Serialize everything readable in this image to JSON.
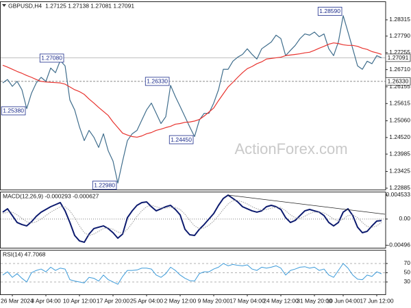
{
  "chart_data": [
    {
      "type": "line",
      "title": "GBPUSD,H4",
      "subtitle": "1.27125 1.27138 1.27081 1.27091",
      "watermark": "ActionForex.com",
      "categories": [
        null,
        null,
        "26 Mar 2024",
        null,
        null,
        null,
        null,
        null,
        null,
        "3 Apr 04:00",
        null,
        null,
        null,
        null,
        null,
        null,
        "10 Apr 12:00",
        null,
        null,
        null,
        null,
        null,
        null,
        "17 Apr 20:00",
        null,
        null,
        null,
        null,
        null,
        null,
        "25 Apr 04:00",
        null,
        null,
        null,
        null,
        null,
        null,
        "2 May 12:00",
        null,
        null,
        null,
        null,
        null,
        null,
        "9 May 20:00",
        null,
        null,
        null,
        null,
        null,
        null,
        "17 May 04:00",
        null,
        null,
        null,
        null,
        null,
        null,
        "24 May 12:00",
        null,
        null,
        null,
        null,
        null,
        null,
        "31 May 20:00",
        null,
        null,
        null,
        null,
        null,
        "10 Jun 04:00",
        null,
        null,
        null,
        null,
        null,
        null,
        "17 Jun 12:00",
        null
      ],
      "series": [
        {
          "color": "#3f6d8c",
          "width": 1.2,
          "values": [
            1.2628,
            1.2639,
            1.2617,
            1.2633,
            1.2606,
            1.2545,
            1.2595,
            1.2628,
            1.2646,
            1.2633,
            1.2676,
            1.2661,
            1.27,
            1.2683,
            1.2573,
            1.2541,
            1.2486,
            1.2442,
            1.2475,
            1.2453,
            1.242,
            1.2464,
            1.2409,
            1.2376,
            1.2305,
            1.2376,
            1.2442,
            1.2464,
            1.2475,
            1.2508,
            1.2541,
            1.2563,
            1.253,
            1.2497,
            1.2519,
            1.262,
            1.2584,
            1.2552,
            1.2519,
            1.2486,
            1.2455,
            1.2508,
            1.253,
            1.253,
            1.2563,
            1.2606,
            1.2672,
            1.2672,
            1.2698,
            1.2711,
            1.272,
            1.2738,
            1.272,
            1.2705,
            1.2738,
            1.2749,
            1.276,
            1.2782,
            1.2771,
            1.2716,
            1.2733,
            1.2749,
            1.2771,
            1.2786,
            1.2782,
            1.2792,
            1.2777,
            1.2786,
            1.2738,
            1.2716,
            1.276,
            1.2845,
            1.2792,
            1.2738,
            1.2683,
            1.2672,
            1.2698,
            1.269,
            1.2716,
            1.2709
          ]
        },
        {
          "color": "#e8322d",
          "width": 1.2,
          "values": [
            1.2685,
            1.2679,
            1.2672,
            1.2665,
            1.2659,
            1.2652,
            1.2646,
            1.2639,
            1.2633,
            1.2631,
            1.263,
            1.2629,
            1.2628,
            1.2624,
            1.2615,
            1.2606,
            1.26,
            1.2591,
            1.2576,
            1.2563,
            1.2549,
            1.2536,
            1.2523,
            1.2502,
            1.2484,
            1.2466,
            1.246,
            1.2455,
            1.2453,
            1.2457,
            1.2464,
            1.2468,
            1.2475,
            1.2479,
            1.2484,
            1.2488,
            1.2495,
            1.2497,
            1.2501,
            1.2502,
            1.2505,
            1.251,
            1.2521,
            1.2534,
            1.2547,
            1.2571,
            1.2593,
            1.2615,
            1.263,
            1.2646,
            1.2661,
            1.2674,
            1.2681,
            1.269,
            1.2696,
            1.2705,
            1.2707,
            1.2709,
            1.2711,
            1.2716,
            1.2718,
            1.272,
            1.2722,
            1.2725,
            1.2727,
            1.2733,
            1.274,
            1.2746,
            1.2753,
            1.2757,
            1.2755,
            1.2751,
            1.2749,
            1.2749,
            1.2746,
            1.274,
            1.2736,
            1.2729,
            1.2725,
            1.272
          ]
        }
      ],
      "ylim": [
        1.2284,
        1.2891
      ],
      "yticks": [
        1.28315,
        {
          "value": 1.2779,
          "label": "1.27790"
        },
        1.27255,
        {
          "value": 1.2671,
          "label": "1.26710"
        },
        1.26155,
        1.25615,
        {
          "value": 1.2506,
          "label": "1.25060"
        },
        {
          "value": 1.2452,
          "label": "1.24520"
        },
        1.23985,
        1.23425,
        1.22885
      ],
      "levels": [
        {
          "value": 1.2633,
          "label": "1.26330",
          "style": "dashed"
        },
        {
          "value": 1.27091,
          "label": "1.27091",
          "style": "solid"
        }
      ],
      "annotations": [
        {
          "index": 5,
          "value": 1.2538,
          "label": "1.25380"
        },
        {
          "index": 13,
          "value": 1.2708,
          "label": "1.27080"
        },
        {
          "index": 35,
          "value": 1.2633,
          "label": "1.26330"
        },
        {
          "index": 24,
          "value": 1.2298,
          "label": "1.22980"
        },
        {
          "index": 40,
          "value": 1.2445,
          "label": "1.24450"
        },
        {
          "index": 71,
          "value": 1.2859,
          "label": "1.28590"
        }
      ]
    },
    {
      "type": "line",
      "title": "MACD(12,26,9) -0.000293 -0.000627",
      "series": [
        {
          "color": "#0c1a6e",
          "width": 2,
          "values": [
            0.0013,
            0.00194,
            0.00065,
            -0.00065,
            -0.00104,
            -0.0013,
            -0.00052,
            0.00052,
            0.0013,
            0.00181,
            0.00233,
            0.00272,
            0.00311,
            0.00155,
            -0.00065,
            -0.00311,
            -0.00414,
            -0.0044,
            -0.00285,
            -0.00181,
            -0.00155,
            -0.0013,
            -0.00181,
            -0.00259,
            -0.00363,
            -0.00285,
            0.00026,
            0.00155,
            0.00259,
            0.00311,
            0.00324,
            0.00233,
            0.00155,
            0.00194,
            0.00233,
            0.00259,
            0.00181,
            0.00078,
            -0.00194,
            -0.00298,
            -0.00311,
            -0.00194,
            -0.00104,
            0,
            0.00104,
            0.00259,
            0.00389,
            0.00453,
            0.00389,
            0.00324,
            0.00233,
            0.00194,
            0.00155,
            0.0013,
            0.00155,
            0.00233,
            0.00259,
            0.00233,
            0.00181,
            0.00026,
            -0.00065,
            -0.00026,
            0.00065,
            0.00155,
            0.00181,
            0.00155,
            0.0013,
            0.00065,
            -0.00065,
            -0.0013,
            -0.00065,
            0.0013,
            0.00194,
            0.00065,
            -0.00155,
            -0.00259,
            -0.00233,
            -0.0013,
            -0.00039,
            -0.00029
          ]
        },
        {
          "color": "#9a9a9a",
          "width": 1,
          "style": "dotted",
          "values": [
            0.00104,
            0.0013,
            0.0013,
            0.00078,
            0.00013,
            -0.00052,
            -0.00078,
            -0.00052,
            0,
            0.00065,
            0.0013,
            0.00181,
            0.00233,
            0.00233,
            0.00155,
            0.00026,
            -0.0013,
            -0.00259,
            -0.00311,
            -0.00285,
            -0.00233,
            -0.00181,
            -0.00168,
            -0.00194,
            -0.00246,
            -0.00272,
            -0.00194,
            -0.00078,
            0.00052,
            0.00155,
            0.00233,
            0.00259,
            0.00233,
            0.00207,
            0.00207,
            0.0022,
            0.0022,
            0.00181,
            0.00091,
            -0.00026,
            -0.0013,
            -0.00181,
            -0.00168,
            -0.00117,
            -0.00039,
            0.00065,
            0.00181,
            0.00285,
            0.0035,
            0.0035,
            0.00324,
            0.00285,
            0.00233,
            0.00194,
            0.00168,
            0.00181,
            0.00207,
            0.0022,
            0.0022,
            0.00155,
            0.00078,
            0.00026,
            0.00013,
            0.00052,
            0.00104,
            0.0013,
            0.0013,
            0.00117,
            0.00065,
            0,
            -0.00039,
            0,
            0.00065,
            0.00078,
            0.00026,
            -0.00065,
            -0.00142,
            -0.00155,
            -0.0013,
            -0.00063
          ]
        }
      ],
      "ylim": [
        -0.00544,
        0.00518
      ],
      "yticks": [
        0.004533,
        {
          "value": 0,
          "label": "0.00"
        },
        -0.00496
      ],
      "zero_line": true
    },
    {
      "type": "line",
      "title": "RSI(14) 47.7068",
      "series": [
        {
          "color": "#3b9ad9",
          "width": 1,
          "values": [
            45,
            52,
            40,
            48,
            38,
            30,
            50,
            55,
            58,
            52,
            62,
            55,
            60,
            58,
            35,
            32,
            30,
            28,
            40,
            38,
            32,
            45,
            35,
            30,
            25,
            42,
            55,
            55,
            56,
            60,
            60,
            58,
            45,
            40,
            48,
            62,
            55,
            45,
            38,
            33,
            32,
            48,
            52,
            52,
            58,
            62,
            70,
            65,
            68,
            66,
            65,
            67,
            58,
            55,
            62,
            60,
            62,
            65,
            60,
            45,
            55,
            58,
            62,
            63,
            60,
            62,
            55,
            58,
            45,
            40,
            55,
            70,
            60,
            45,
            36,
            35,
            45,
            42,
            52,
            47.7068
          ]
        }
      ],
      "ylim": [
        3.3,
        99.6
      ],
      "yticks": [
        70,
        50,
        30
      ],
      "grid": true
    }
  ]
}
